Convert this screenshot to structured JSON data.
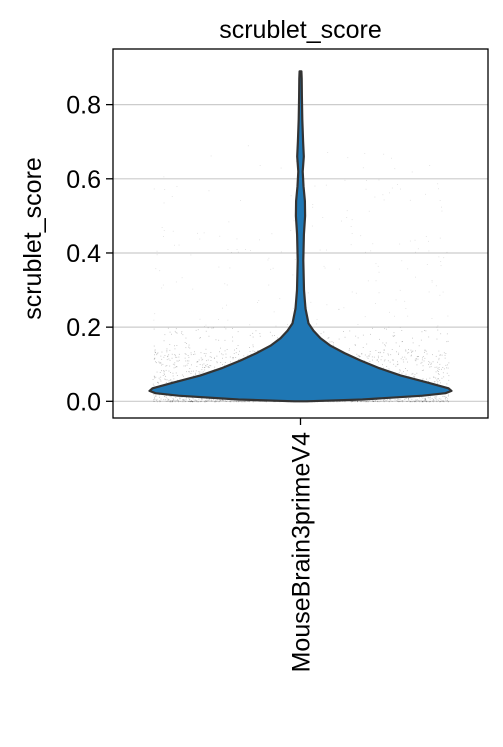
{
  "chart_data": {
    "type": "violin",
    "title": "scrublet_score",
    "xlabel": "",
    "ylabel": "scrublet_score",
    "categories": [
      "MouseBrain3primeV4"
    ],
    "yticks": [
      0.0,
      0.2,
      0.4,
      0.6,
      0.8
    ],
    "ytick_labels": [
      "0.0",
      "0.2",
      "0.4",
      "0.6",
      "0.8"
    ],
    "ylim": [
      -0.045,
      0.95
    ],
    "grid": "horizontal",
    "legend": "none",
    "violin": {
      "min": 0.0,
      "max": 0.89,
      "bulk_upper": 0.2,
      "widest_density_at": 0.025,
      "point_cloud_upper": 0.7
    },
    "colors": {
      "violin_fill": "#1f77b4",
      "violin_edge": "#333333",
      "points": "#555555",
      "grid": "#cccccc",
      "axes": "#000000"
    }
  }
}
